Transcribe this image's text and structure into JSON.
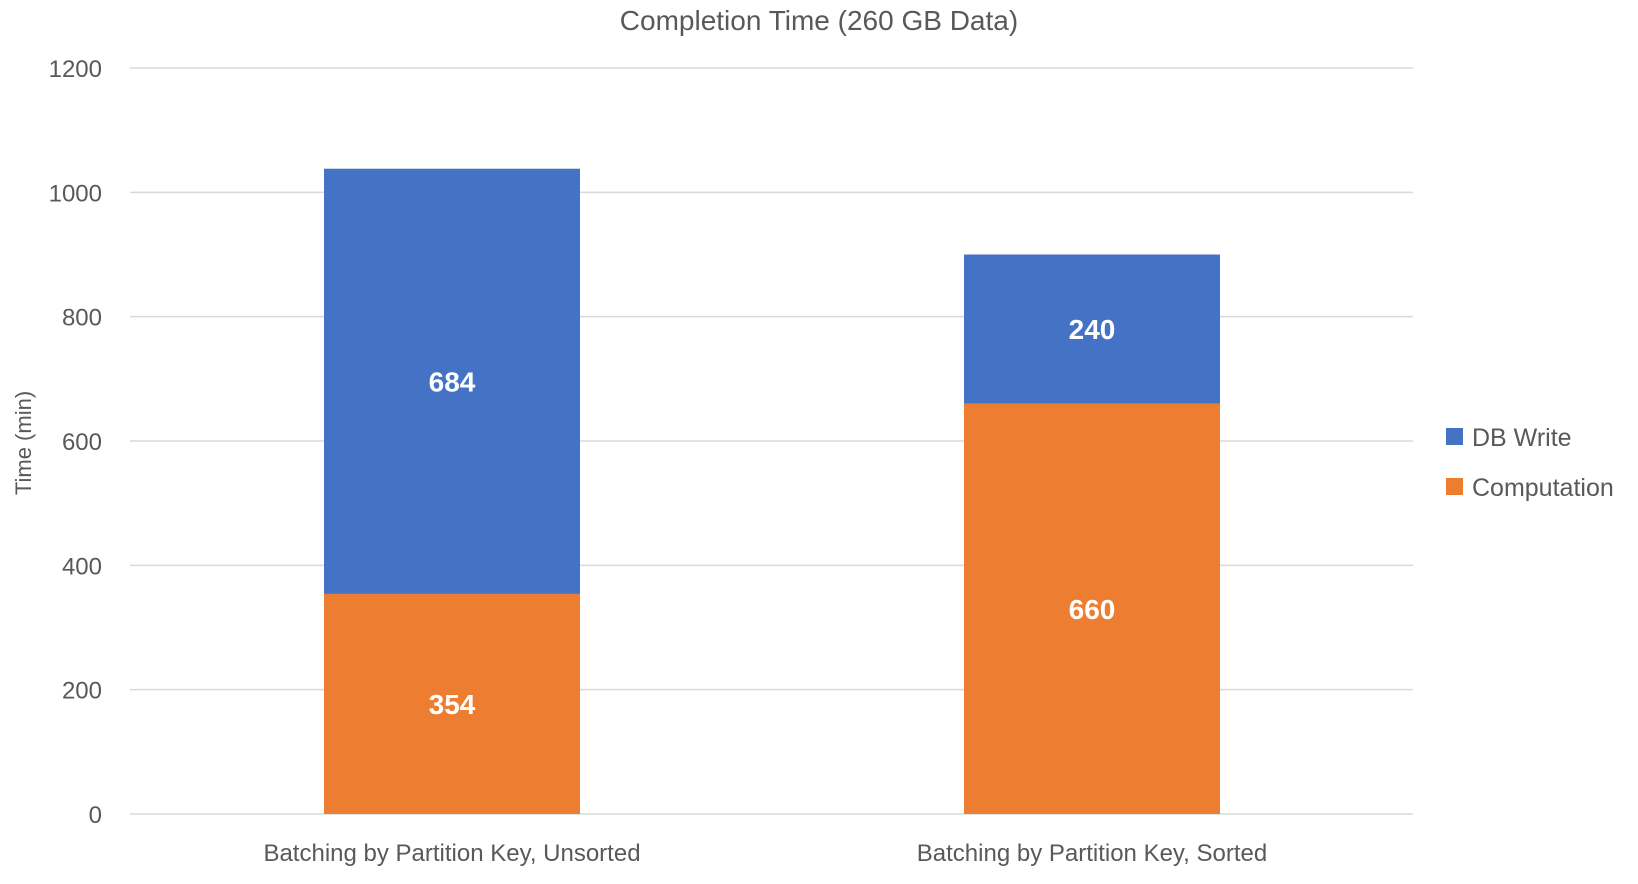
{
  "chart_data": {
    "type": "bar",
    "stacked": true,
    "title": "Completion Time (260 GB Data)",
    "xlabel": "",
    "ylabel": "Time (min)",
    "ylim": [
      0,
      1200
    ],
    "yticks": [
      0,
      200,
      400,
      600,
      800,
      1000,
      1200
    ],
    "grid": true,
    "legend_position": "right",
    "categories": [
      "Batching by Partition Key, Unsorted",
      "Batching by Partition Key, Sorted"
    ],
    "series": [
      {
        "name": "Computation",
        "color": "#ED7D31",
        "values": [
          354,
          660
        ]
      },
      {
        "name": "DB Write",
        "color": "#4472C4",
        "values": [
          684,
          240
        ]
      }
    ]
  }
}
